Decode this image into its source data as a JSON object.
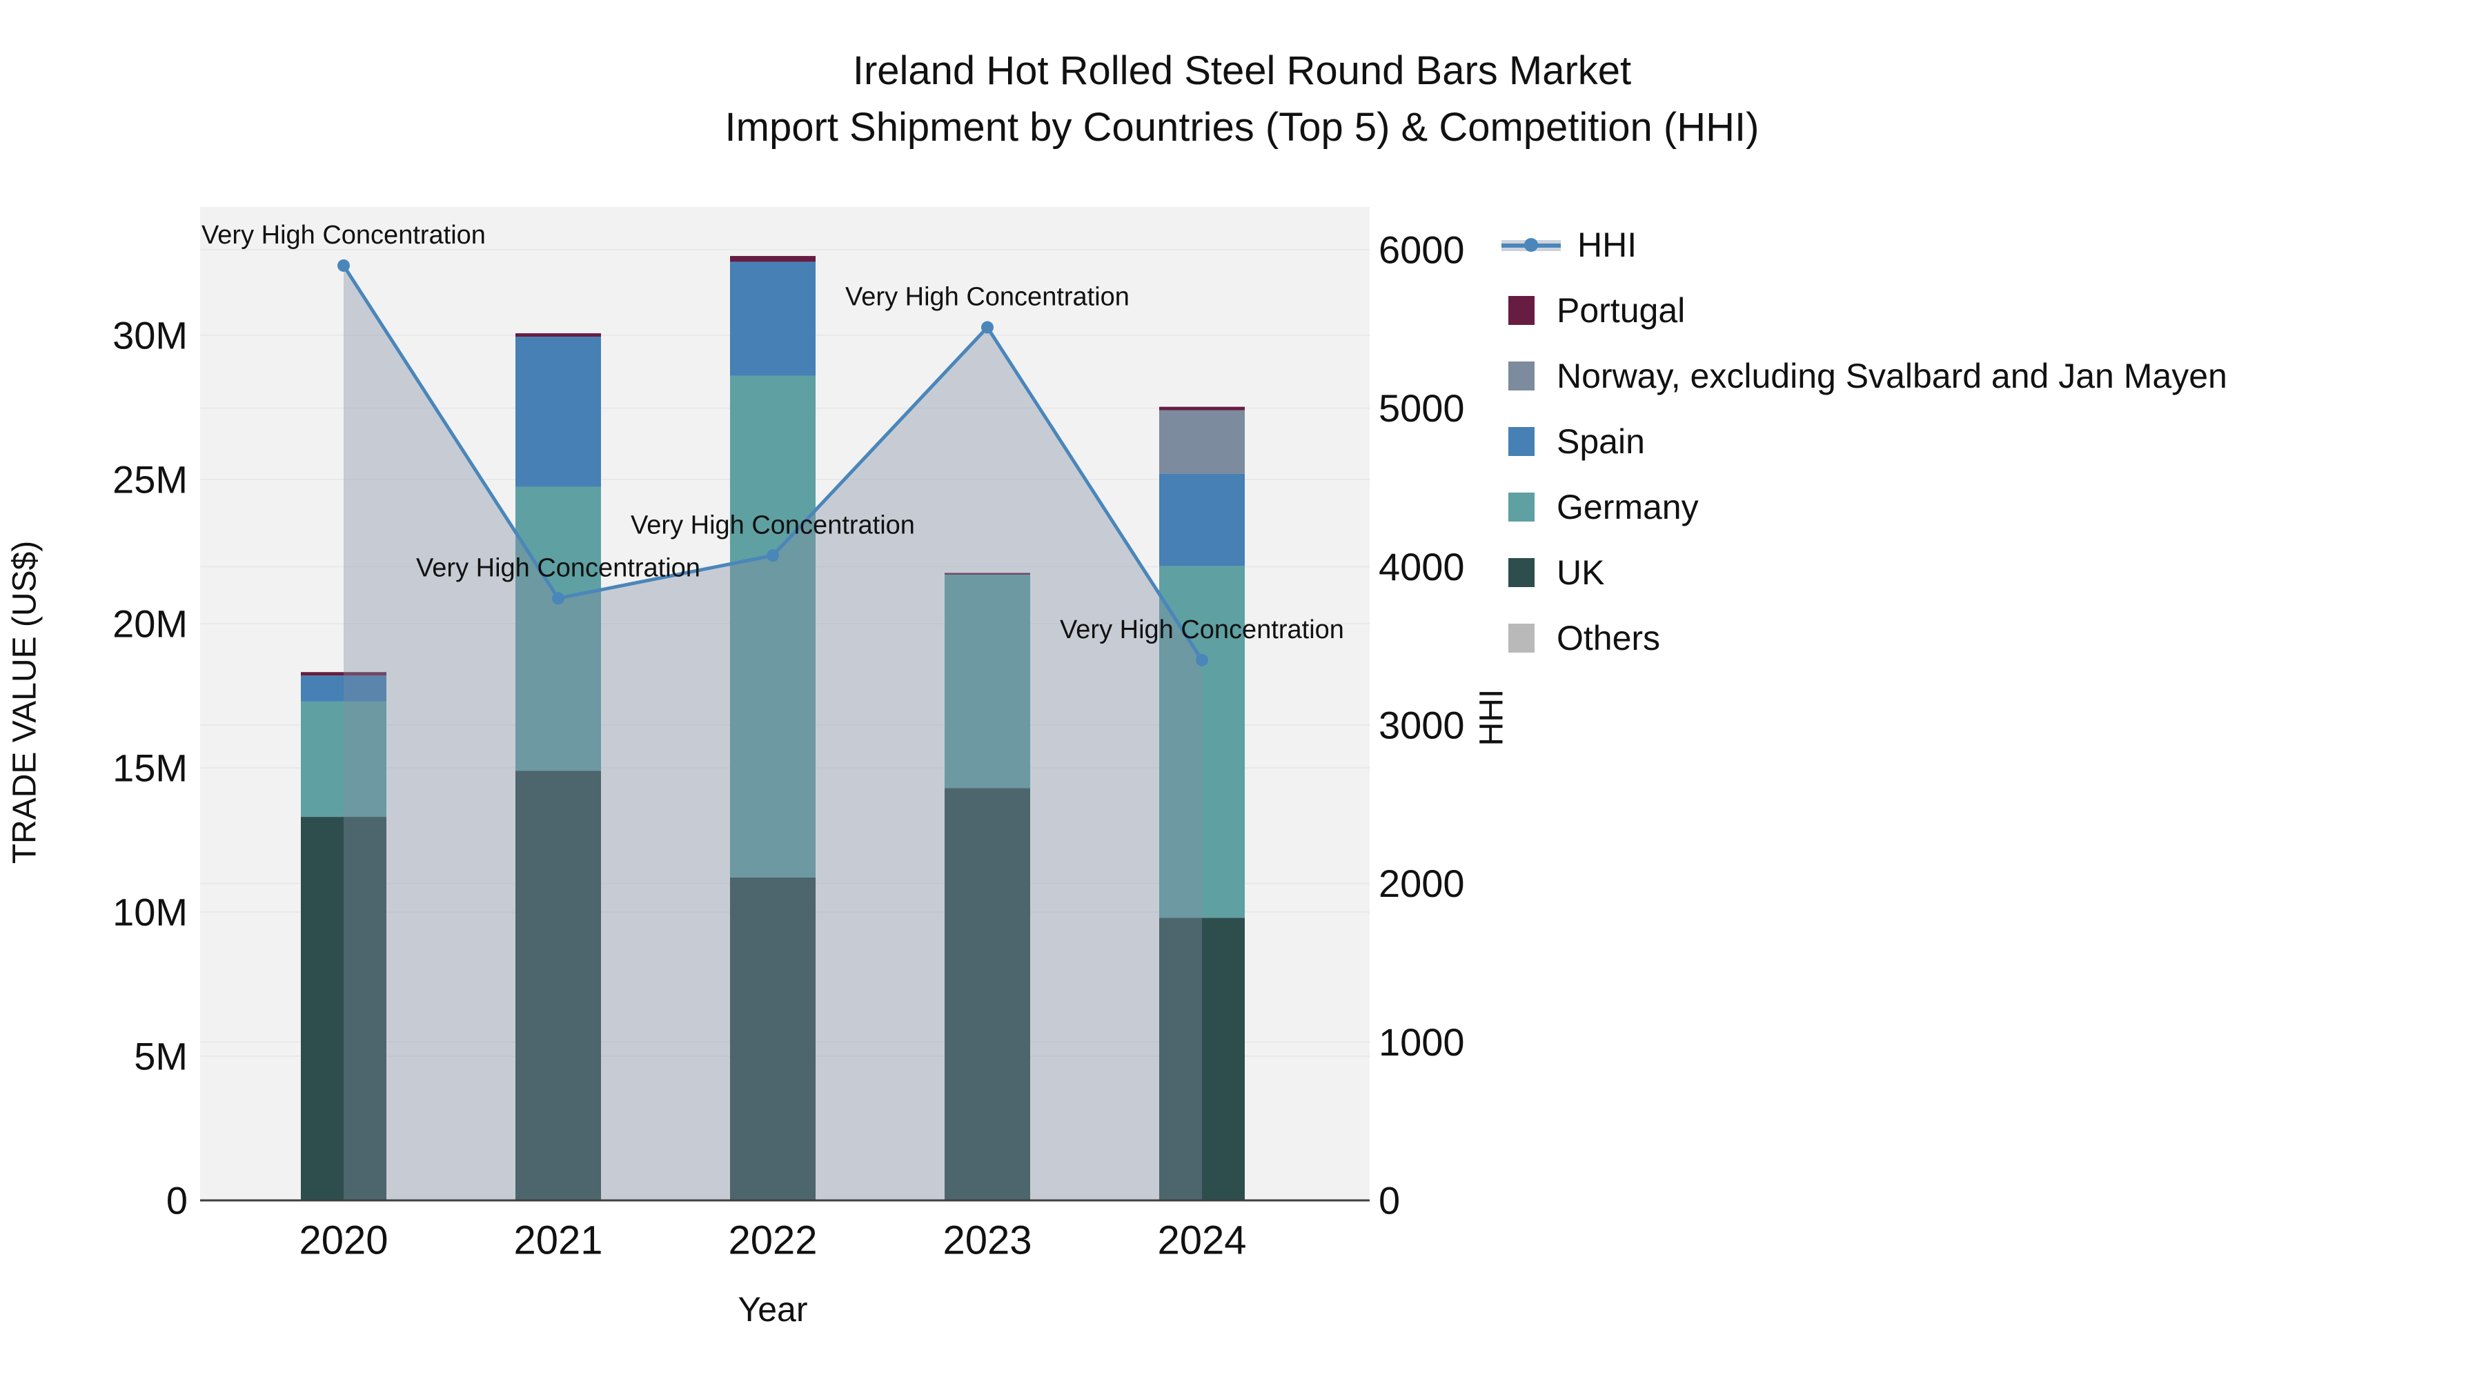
{
  "title": {
    "line1": "Ireland Hot Rolled Steel Round Bars Market",
    "line2": "Import Shipment by Countries (Top 5) & Competition (HHI)"
  },
  "axes": {
    "x": {
      "title": "Year",
      "ticks": [
        "2020",
        "2021",
        "2022",
        "2023",
        "2024"
      ]
    },
    "y_left": {
      "title": "TRADE VALUE (US$)",
      "ticks": [
        {
          "label": "0",
          "value": 0
        },
        {
          "label": "5M",
          "value": 5
        },
        {
          "label": "10M",
          "value": 10
        },
        {
          "label": "15M",
          "value": 15
        },
        {
          "label": "20M",
          "value": 20
        },
        {
          "label": "25M",
          "value": 25
        },
        {
          "label": "30M",
          "value": 30
        }
      ]
    },
    "y_right": {
      "title": "HHI",
      "ticks": [
        {
          "label": "0",
          "value": 0
        },
        {
          "label": "1000",
          "value": 1000
        },
        {
          "label": "2000",
          "value": 2000
        },
        {
          "label": "3000",
          "value": 3000
        },
        {
          "label": "4000",
          "value": 4000
        },
        {
          "label": "5000",
          "value": 5000
        },
        {
          "label": "6000",
          "value": 6000
        }
      ]
    }
  },
  "legend": {
    "items": [
      {
        "id": "hhi",
        "label": "HHI",
        "type": "line",
        "color": "#4a86ba"
      },
      {
        "id": "portugal",
        "label": "Portugal",
        "type": "swatch",
        "color": "#671d41"
      },
      {
        "id": "norway",
        "label": "Norway, excluding Svalbard and Jan Mayen",
        "type": "swatch",
        "color": "#7c8b9d"
      },
      {
        "id": "spain",
        "label": "Spain",
        "type": "swatch",
        "color": "#4680b4"
      },
      {
        "id": "germany",
        "label": "Germany",
        "type": "swatch",
        "color": "#5fa0a2"
      },
      {
        "id": "uk",
        "label": "UK",
        "type": "swatch",
        "color": "#2e4d4d"
      },
      {
        "id": "others",
        "label": "Others",
        "type": "swatch",
        "color": "#b9b9b9"
      }
    ]
  },
  "colors": {
    "plot_background": "#f2f2f3",
    "gridline": "#e9e9ec",
    "axis_line": "#3f3f3f",
    "hhi_line": "#4a86ba",
    "hhi_area_fill": "rgba(130,142,162,0.38)",
    "text": "#111111"
  },
  "chart_data": {
    "type": "bar",
    "stacked": true,
    "title": "Ireland Hot Rolled Steel Round Bars Market — Import Shipment by Countries (Top 5) & Competition (HHI)",
    "xlabel": "Year",
    "ylabel": "TRADE VALUE (US$)",
    "ylabel_right": "HHI",
    "categories": [
      "2020",
      "2021",
      "2022",
      "2023",
      "2024"
    ],
    "units": "millions USD",
    "ylim_left": [
      0,
      34.45
    ],
    "ylim_right": [
      0,
      6270
    ],
    "grid": true,
    "legend_position": "right",
    "series": [
      {
        "name": "Others",
        "color": "#b9b9b9",
        "values": [
          0,
          0,
          0,
          0,
          0
        ]
      },
      {
        "name": "UK",
        "color": "#2e4d4d",
        "values": [
          13.3,
          14.9,
          11.2,
          14.3,
          9.8
        ]
      },
      {
        "name": "Germany",
        "color": "#5fa0a2",
        "values": [
          4.0,
          9.85,
          17.4,
          7.4,
          12.2
        ]
      },
      {
        "name": "Spain",
        "color": "#4680b4",
        "values": [
          0.9,
          5.2,
          3.95,
          0,
          3.2
        ]
      },
      {
        "name": "Norway, excluding Svalbard and Jan Mayen",
        "color": "#7c8b9d",
        "values": [
          0,
          0,
          0,
          0,
          2.2
        ]
      },
      {
        "name": "Portugal",
        "color": "#671d41",
        "values": [
          0.12,
          0.12,
          0.2,
          0.06,
          0.12
        ]
      }
    ],
    "line_series": {
      "name": "HHI",
      "axis": "right",
      "color": "#4a86ba",
      "values": [
        5900,
        3800,
        4070,
        5510,
        3410
      ],
      "annotations": [
        "Very High Concentration",
        "Very High Concentration",
        "Very High Concentration",
        "Very High Concentration",
        "Very High Concentration"
      ]
    }
  }
}
